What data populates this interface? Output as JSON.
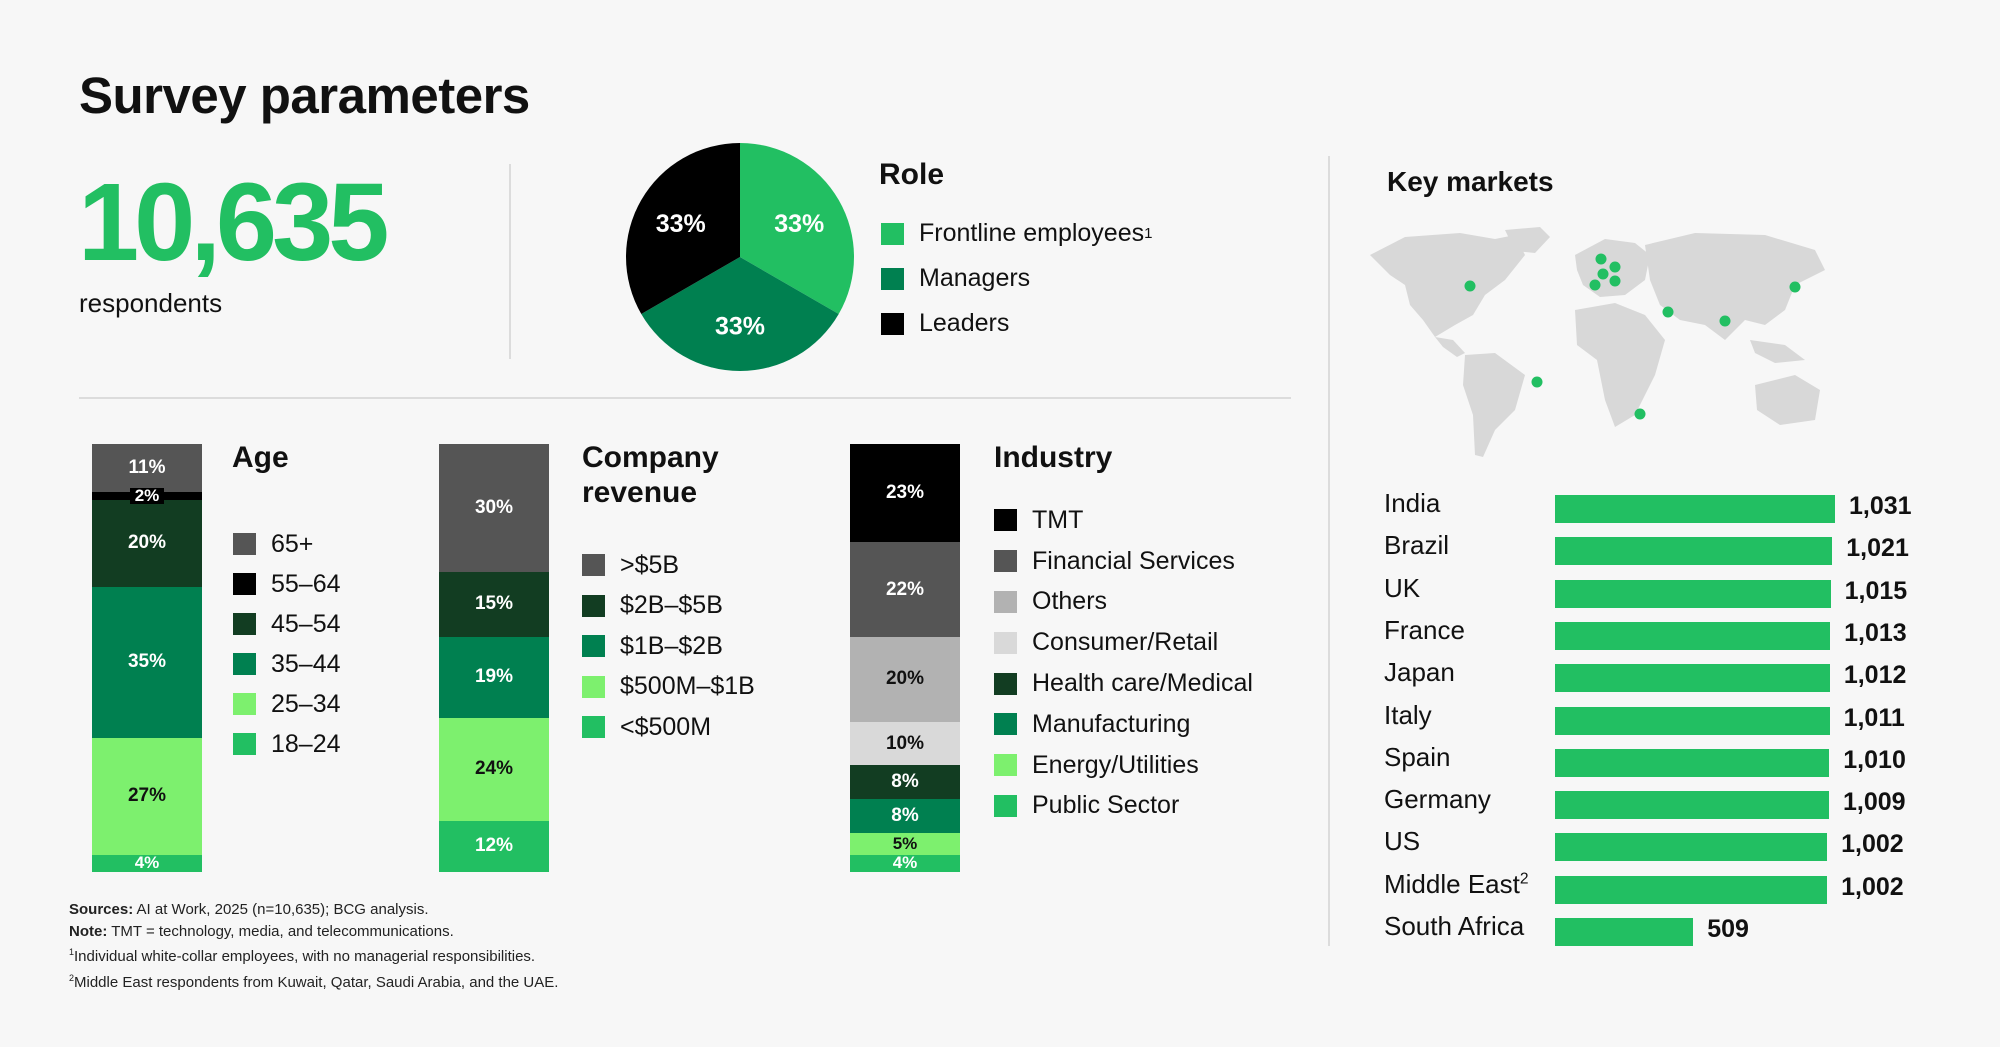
{
  "title": "Survey parameters",
  "respondents": {
    "count": "10,635",
    "label": "respondents"
  },
  "colors": {
    "green": "#22bf62",
    "dark_green": "#008050",
    "deep_green": "#123d22",
    "light_green": "#7df06e",
    "black": "#000000",
    "dark_grey": "#555555",
    "grey": "#b2b2b2",
    "light_grey": "#d9d9d9"
  },
  "chart_data": [
    {
      "type": "pie",
      "title": "Role",
      "slices": [
        {
          "label": "Frontline employees",
          "sup": "1",
          "value": 33,
          "display": "33%",
          "color": "#22bf62"
        },
        {
          "label": "Managers",
          "value": 33,
          "display": "33%",
          "color": "#008050"
        },
        {
          "label": "Leaders",
          "value": 33,
          "display": "33%",
          "color": "#000000"
        }
      ]
    },
    {
      "type": "bar",
      "stacked": true,
      "title": "Age",
      "segments": [
        {
          "label": "65+",
          "value": 11,
          "display": "11%",
          "color": "#555555"
        },
        {
          "label": "55–64",
          "value": 2,
          "display": "2%",
          "color": "#000000"
        },
        {
          "label": "45–54",
          "value": 20,
          "display": "20%",
          "color": "#123d22"
        },
        {
          "label": "35–44",
          "value": 35,
          "display": "35%",
          "color": "#008050"
        },
        {
          "label": "25–34",
          "value": 27,
          "display": "27%",
          "color": "#7df06e"
        },
        {
          "label": "18–24",
          "value": 4,
          "display": "4%",
          "color": "#22bf62"
        }
      ]
    },
    {
      "type": "bar",
      "stacked": true,
      "title": "Company revenue",
      "segments": [
        {
          "label": ">$5B",
          "value": 30,
          "display": "30%",
          "color": "#555555"
        },
        {
          "label": "$2B–$5B",
          "value": 15,
          "display": "15%",
          "color": "#123d22"
        },
        {
          "label": "$1B–$2B",
          "value": 19,
          "display": "19%",
          "color": "#008050"
        },
        {
          "label": "$500M–$1B",
          "value": 24,
          "display": "24%",
          "color": "#7df06e"
        },
        {
          "label": "<$500M",
          "value": 12,
          "display": "12%",
          "color": "#22bf62"
        }
      ]
    },
    {
      "type": "bar",
      "stacked": true,
      "title": "Industry",
      "segments": [
        {
          "label": "TMT",
          "value": 23,
          "display": "23%",
          "color": "#000000"
        },
        {
          "label": "Financial Services",
          "value": 22,
          "display": "22%",
          "color": "#555555"
        },
        {
          "label": "Others",
          "value": 20,
          "display": "20%",
          "color": "#b2b2b2"
        },
        {
          "label": "Consumer/Retail",
          "value": 10,
          "display": "10%",
          "color": "#d9d9d9"
        },
        {
          "label": "Health care/Medical",
          "value": 8,
          "display": "8%",
          "color": "#123d22"
        },
        {
          "label": "Manufacturing",
          "value": 8,
          "display": "8%",
          "color": "#008050"
        },
        {
          "label": "Energy/Utilities",
          "value": 5,
          "display": "5%",
          "color": "#7df06e"
        },
        {
          "label": "Public Sector",
          "value": 4,
          "display": "4%",
          "color": "#22bf62"
        }
      ]
    },
    {
      "type": "bar",
      "orientation": "horizontal",
      "title": "Key markets",
      "xlim": [
        0,
        1031
      ],
      "bars": [
        {
          "label": "India",
          "value": 1031,
          "display": "1,031"
        },
        {
          "label": "Brazil",
          "value": 1021,
          "display": "1,021"
        },
        {
          "label": "UK",
          "value": 1015,
          "display": "1,015"
        },
        {
          "label": "France",
          "value": 1013,
          "display": "1,013"
        },
        {
          "label": "Japan",
          "value": 1012,
          "display": "1,012"
        },
        {
          "label": "Italy",
          "value": 1011,
          "display": "1,011"
        },
        {
          "label": "Spain",
          "value": 1010,
          "display": "1,010"
        },
        {
          "label": "Germany",
          "value": 1009,
          "display": "1,009"
        },
        {
          "label": "US",
          "value": 1002,
          "display": "1,002"
        },
        {
          "label": "Middle East",
          "sup": "2",
          "value": 1002,
          "display": "1,002"
        },
        {
          "label": "South Africa",
          "value": 509,
          "display": "509"
        }
      ]
    }
  ],
  "notes": {
    "sources_label": "Sources:",
    "sources": " AI at Work, 2025 (n=10,635); BCG analysis.",
    "note_label": "Note:",
    "note": " TMT = technology, media, and telecommunications.",
    "fn1_mark": "1",
    "fn1": "Individual white-collar employees, with no managerial responsibilities.",
    "fn2_mark": "2",
    "fn2": "Middle East respondents from Kuwait, Qatar, Saudi Arabia, and the UAE."
  }
}
